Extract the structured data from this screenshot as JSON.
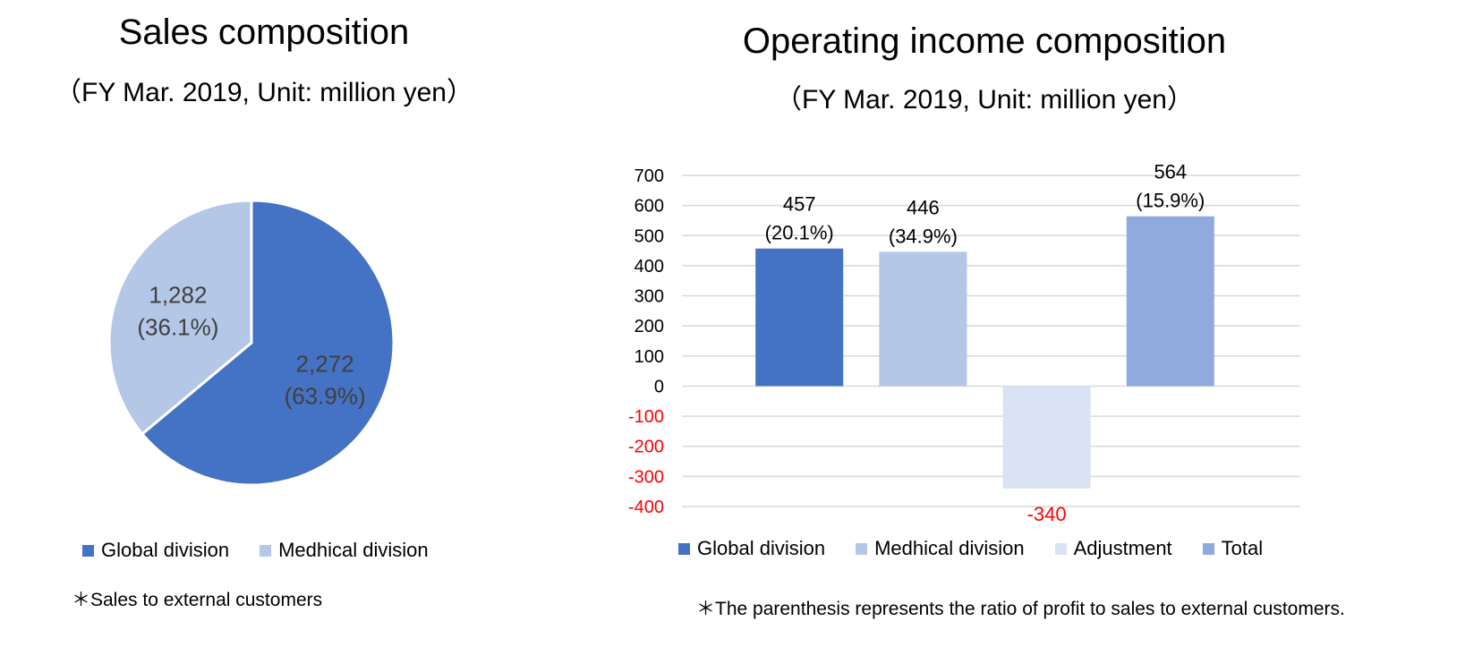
{
  "colors": {
    "global": "#4472c4",
    "medhical": "#b4c7e7",
    "adjustment": "#dae3f3",
    "total": "#8faadc",
    "negative_tick": "#ff0000",
    "grid": "#d9d9d9"
  },
  "pie": {
    "title": "Sales composition",
    "subtitle": "（FY Mar. 2019, Unit: million yen）",
    "note": "＊Sales to external customers"
  },
  "bar": {
    "title": "Operating income composition",
    "subtitle": "（FY Mar. 2019, Unit: million yen）",
    "note": "＊The parenthesis represents the ratio of profit to sales to external customers."
  },
  "chart_data": [
    {
      "type": "pie",
      "title": "Sales composition",
      "subtitle": "（FY Mar. 2019, Unit: million yen）",
      "legend_position": "bottom",
      "slices": [
        {
          "name": "Global division",
          "value": 2272,
          "value_label": "2,272",
          "pct_label": "(63.9%)",
          "color": "#4472c4"
        },
        {
          "name": "Medhical division",
          "value": 1282,
          "value_label": "1,282",
          "pct_label": "(36.1%)",
          "color": "#b4c7e7"
        }
      ]
    },
    {
      "type": "bar",
      "title": "Operating income composition",
      "subtitle": "（FY Mar. 2019, Unit: million yen）",
      "ylim": [
        -400,
        700
      ],
      "yticks": [
        700,
        600,
        500,
        400,
        300,
        200,
        100,
        0,
        -100,
        -200,
        -300,
        -400
      ],
      "grid": true,
      "legend_position": "bottom",
      "categories": [
        "Global division",
        "Medhical division",
        "Adjustment",
        "Total"
      ],
      "values": [
        457,
        446,
        -340,
        564
      ],
      "value_labels": [
        "457",
        "446",
        "-340",
        "564"
      ],
      "pct_labels": [
        "(20.1%)",
        "(34.9%)",
        "",
        "(15.9%)"
      ],
      "colors": [
        "#4472c4",
        "#b4c7e7",
        "#dae3f3",
        "#8faadc"
      ]
    }
  ]
}
